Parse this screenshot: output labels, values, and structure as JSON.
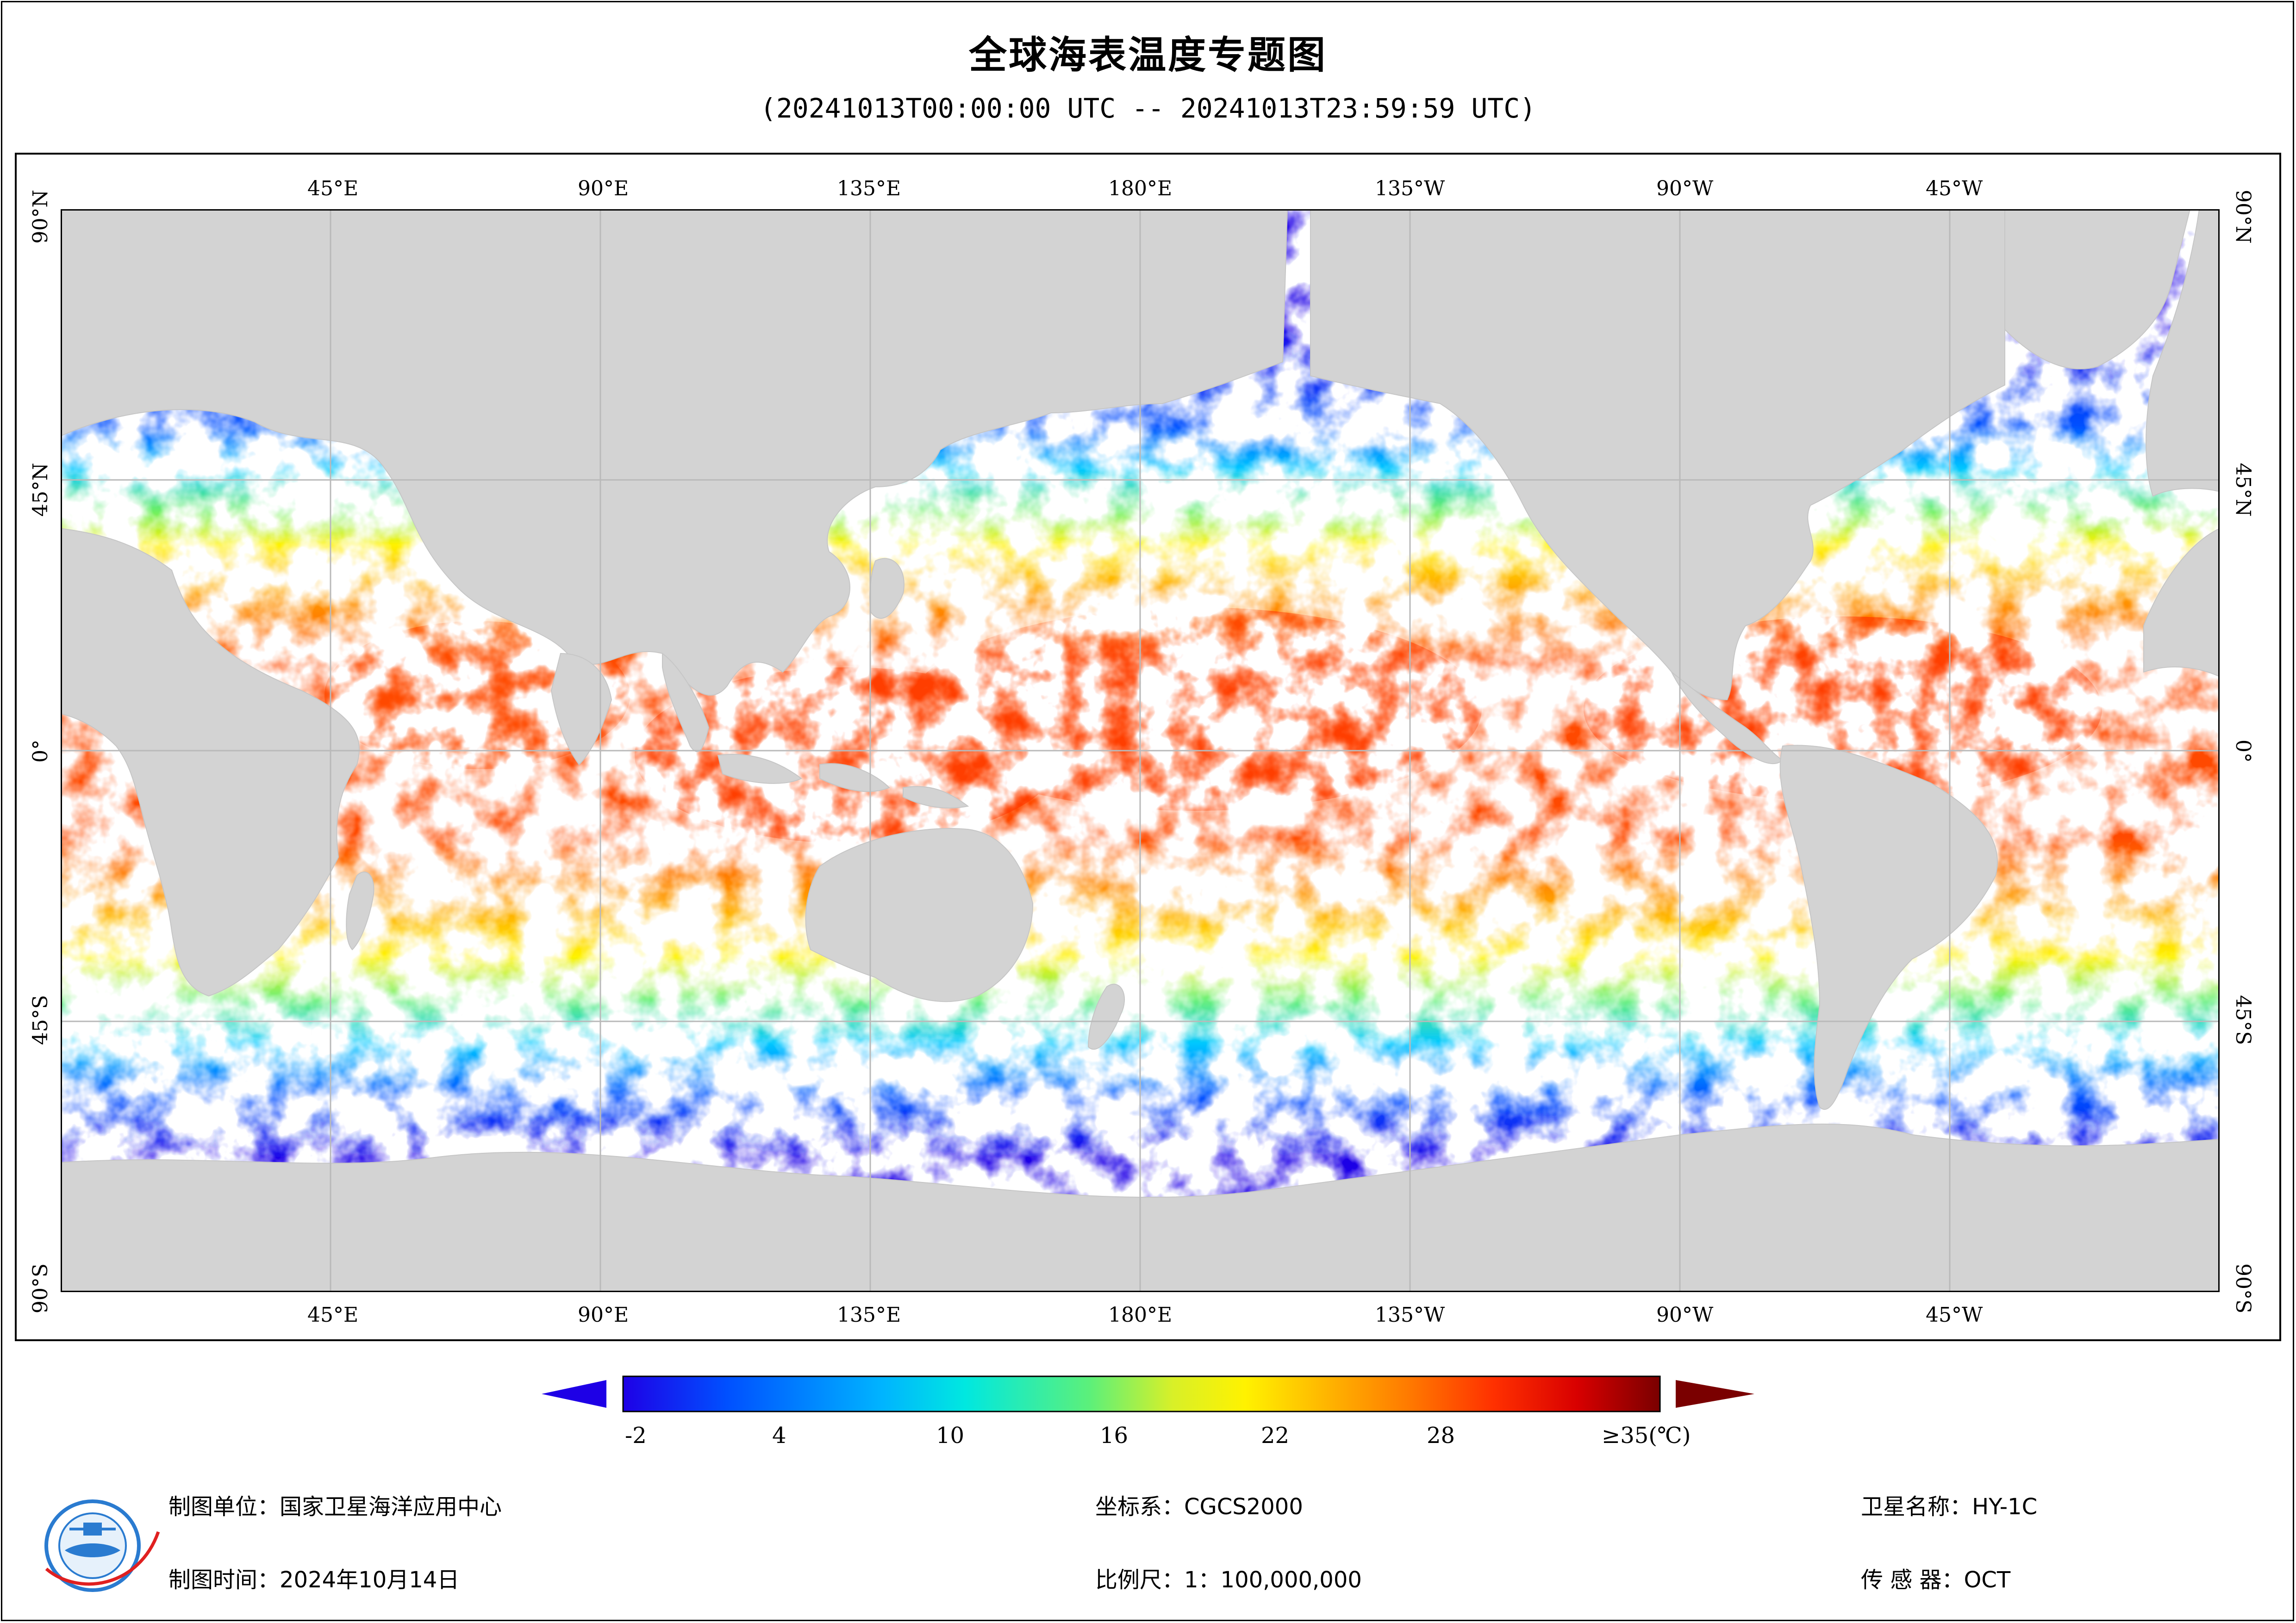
{
  "title": "全球海表温度专题图",
  "subtitle": "(20241013T00:00:00 UTC -- 20241013T23:59:59 UTC)",
  "map": {
    "lon_ticks": [
      "45°E",
      "90°E",
      "135°E",
      "180°E",
      "135°W",
      "90°W",
      "45°W"
    ],
    "lat_ticks": [
      "90°N",
      "45°N",
      "0°",
      "45°S",
      "90°S"
    ],
    "colors": {
      "land": "#d3d3d3",
      "no_data": "#ffffff",
      "grid": "#b9b9b9"
    }
  },
  "colorbar": {
    "labels": [
      "-2",
      "4",
      "10",
      "16",
      "22",
      "28",
      "≥35(℃)"
    ],
    "min": -2,
    "max": 35,
    "stops": [
      "#1e00e6",
      "#0050ff",
      "#00b4ff",
      "#00e8e0",
      "#5cf07a",
      "#d8f028",
      "#fff200",
      "#ffb400",
      "#ff7800",
      "#ff3000",
      "#d80000",
      "#7a0000"
    ]
  },
  "footer": {
    "unit": "制图单位：国家卫星海洋应用中心",
    "time": "制图时间：2024年10月14日",
    "crs": "坐标系：CGCS2000",
    "scale": "比例尺：1：100,000,000",
    "satellite": "卫星名称：HY-1C",
    "sensor": "传 感 器：OCT"
  }
}
